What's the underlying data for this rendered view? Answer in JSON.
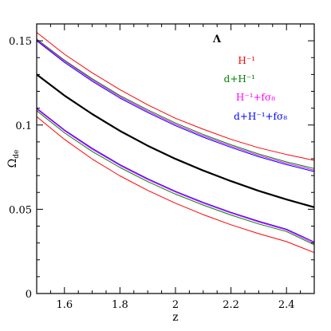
{
  "chart_data": {
    "type": "line",
    "xlabel": "z",
    "ylabel": "Ω",
    "ylabel_sub": "de",
    "xlim": [
      1.5,
      2.5
    ],
    "ylim": [
      0,
      0.16
    ],
    "xticks": [
      1.6,
      1.8,
      2.0,
      2.2,
      2.4
    ],
    "xtick_labels": [
      "1.6",
      "1.8",
      "2",
      "2.2",
      "2.4"
    ],
    "yticks": [
      0,
      0.05,
      0.1,
      0.15
    ],
    "ytick_labels": [
      "0",
      "0.05",
      "0.1",
      "0.15"
    ],
    "grid": false,
    "legend_position": "top-right",
    "legend_title": "Λ",
    "legend": [
      {
        "label": "H⁻¹",
        "color": "#ff0000"
      },
      {
        "label": "d+H⁻¹",
        "color": "#008000"
      },
      {
        "label": "H⁻¹+fσ₈",
        "color": "#ff00ff"
      },
      {
        "label": "d+H⁻¹+fσ₈",
        "color": "#0000ff"
      }
    ],
    "x": [
      1.5,
      1.6,
      1.7,
      1.8,
      1.9,
      2.0,
      2.1,
      2.2,
      2.3,
      2.4,
      2.5
    ],
    "series": [
      {
        "color": "#000000",
        "width": 2.2,
        "values": [
          0.13,
          0.1175,
          0.1065,
          0.0965,
          0.0877,
          0.0799,
          0.073,
          0.0667,
          0.0609,
          0.0558,
          0.0512
        ]
      },
      {
        "color": "#ff0000",
        "width": 1,
        "values": [
          0.155,
          0.142,
          0.131,
          0.121,
          0.112,
          0.104,
          0.0975,
          0.0915,
          0.0865,
          0.0825,
          0.079
        ]
      },
      {
        "color": "#008000",
        "width": 1,
        "values": [
          0.151,
          0.1385,
          0.1275,
          0.1175,
          0.109,
          0.1012,
          0.0944,
          0.0883,
          0.0828,
          0.0781,
          0.0742
        ]
      },
      {
        "color": "#ff00ff",
        "width": 1,
        "values": [
          0.1505,
          0.138,
          0.1268,
          0.1168,
          0.1082,
          0.1004,
          0.0936,
          0.0875,
          0.082,
          0.0773,
          0.0732
        ]
      },
      {
        "color": "#0000ff",
        "width": 1,
        "values": [
          0.15,
          0.1372,
          0.126,
          0.116,
          0.1074,
          0.0996,
          0.0928,
          0.0867,
          0.0812,
          0.0765,
          0.0724
        ]
      },
      {
        "color": "#0000ff",
        "width": 1,
        "values": [
          0.11,
          0.0971,
          0.0862,
          0.0765,
          0.0681,
          0.0607,
          0.0541,
          0.0482,
          0.0429,
          0.0382,
          0.0306
        ]
      },
      {
        "color": "#ff00ff",
        "width": 1,
        "values": [
          0.1095,
          0.0966,
          0.0856,
          0.076,
          0.0676,
          0.0602,
          0.0536,
          0.0477,
          0.0424,
          0.0377,
          0.0298
        ]
      },
      {
        "color": "#008000",
        "width": 1,
        "values": [
          0.1085,
          0.0954,
          0.0843,
          0.0748,
          0.0664,
          0.059,
          0.0525,
          0.0466,
          0.0413,
          0.0368,
          0.0289
        ]
      },
      {
        "color": "#ff0000",
        "width": 1,
        "values": [
          0.105,
          0.0915,
          0.0798,
          0.0698,
          0.0612,
          0.0536,
          0.0468,
          0.0408,
          0.0355,
          0.0308,
          0.0243
        ]
      }
    ]
  }
}
